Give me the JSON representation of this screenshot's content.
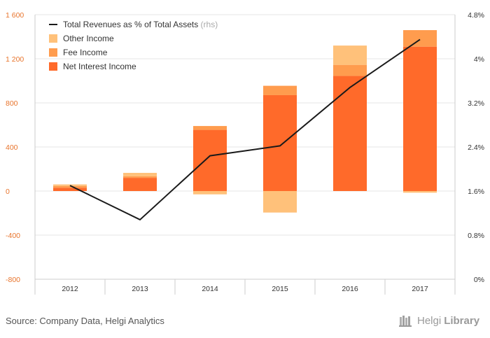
{
  "colors": {
    "net_interest": "#ff6a2a",
    "fee": "#ff9c4e",
    "other": "#ffc17a",
    "line": "#1a1a1a",
    "left_axis_text": "#e8742c",
    "right_axis_text": "#333333",
    "grid": "#e6e6e6"
  },
  "footer": {
    "source": "Source: Company Data, Helgi Analytics",
    "logo_text_1": "Helgi",
    "logo_text_2": "Library"
  },
  "chart_data": {
    "type": "bar",
    "stacked": true,
    "categories": [
      "2012",
      "2013",
      "2014",
      "2015",
      "2016",
      "2017"
    ],
    "series": [
      {
        "name": "Net Interest Income",
        "color": "#ff6a2a",
        "values": [
          30,
          120,
          555,
          870,
          1045,
          1310
        ]
      },
      {
        "name": "Fee Income",
        "color": "#ff9c4e",
        "values": [
          15,
          15,
          35,
          85,
          100,
          150
        ]
      },
      {
        "name": "Other Income",
        "color": "#ffc17a",
        "values": [
          15,
          30,
          -30,
          -195,
          175,
          -15
        ]
      }
    ],
    "line_series": {
      "name": "Total Revenues as % of Total Assets",
      "name_suffix": "(rhs)",
      "axis": "right",
      "values": [
        1.7,
        1.08,
        2.24,
        2.42,
        3.48,
        4.35
      ]
    },
    "y_left": {
      "min": -800,
      "max": 1600,
      "ticks": [
        -800,
        -400,
        0,
        400,
        800,
        1200,
        1600
      ],
      "tick_labels": [
        "-800",
        "-400",
        "0",
        "400",
        "800",
        "1 200",
        "1 600"
      ]
    },
    "y_right": {
      "min": 0,
      "max": 4.8,
      "ticks": [
        0,
        0.8,
        1.6,
        2.4,
        3.2,
        4,
        4.8
      ],
      "tick_labels": [
        "0%",
        "0.8%",
        "1.6%",
        "2.4%",
        "3.2%",
        "4%",
        "4.8%"
      ]
    },
    "grid": true,
    "legend_position": "top-left",
    "legend": [
      {
        "label": "Total Revenues as % of Total Assets",
        "suffix": "(rhs)",
        "kind": "line",
        "color": "#1a1a1a"
      },
      {
        "label": "Other Income",
        "kind": "box",
        "color": "#ffc17a"
      },
      {
        "label": "Fee Income",
        "kind": "box",
        "color": "#ff9c4e"
      },
      {
        "label": "Net Interest Income",
        "kind": "box",
        "color": "#ff6a2a"
      }
    ]
  }
}
